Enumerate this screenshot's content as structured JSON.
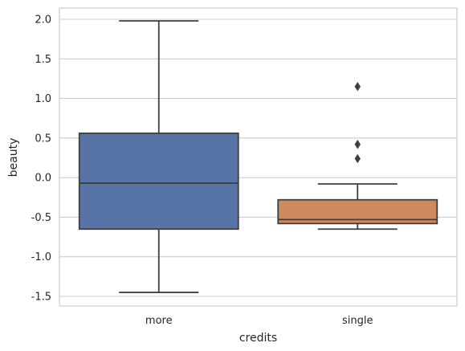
{
  "chart_data": {
    "type": "box",
    "xlabel": "credits",
    "ylabel": "beauty",
    "categories": [
      "more",
      "single"
    ],
    "ylim": [
      -1.62,
      2.15
    ],
    "yticks": [
      -1.5,
      -1.0,
      -0.5,
      0.0,
      0.5,
      1.0,
      1.5,
      2.0
    ],
    "ytick_labels": [
      "-1.5",
      "-1.0",
      "-0.5",
      "0.0",
      "0.5",
      "1.0",
      "1.5",
      "2.0"
    ],
    "grid": true,
    "boxes": [
      {
        "category": "more",
        "whisker_low": -1.45,
        "q1": -0.65,
        "median": -0.07,
        "q3": 0.56,
        "whisker_high": 1.98,
        "outliers": [],
        "color": "#5874a7"
      },
      {
        "category": "single",
        "whisker_low": -0.65,
        "q1": -0.58,
        "median": -0.53,
        "q3": -0.28,
        "whisker_high": -0.08,
        "outliers": [
          0.24,
          0.42,
          1.15
        ],
        "color": "#cd8a5f"
      }
    ],
    "line_color": "#3f3f3f"
  }
}
